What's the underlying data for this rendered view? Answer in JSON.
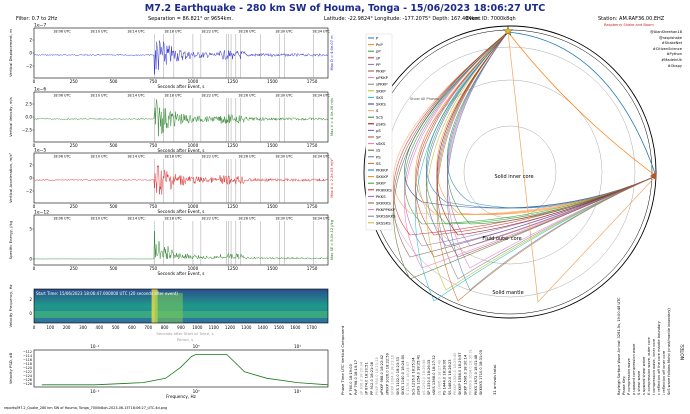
{
  "header": {
    "title": "M7.2 Earthquake - 280 km SW of Houma, Tonga - 15/06/2023 18:06:27 UTC",
    "filter": "Filter: 0.7 to 2Hz",
    "separation": "Separation = 86.821° or 9654km.",
    "location": "Latitude: -22.9824° Longitude: -177.2075° Depth: 167.404km.",
    "event_id": "Event ID: 7000k8qh",
    "station": "Station: AM.RAF36.00.EHZ",
    "station_sub": "Raspberry Shake and Boom",
    "credits": [
      "@AlanSheehan18",
      "@raspishake",
      "#ShakeNet",
      "#CitizenScience",
      "#Python",
      "#MadeInUk",
      "#Obspy"
    ]
  },
  "colors": {
    "title": "#1a2a8a",
    "displacement": "#1f1fcc",
    "velocity": "#1a7a1a",
    "acceleration": "#dd1a1a",
    "energy": "#1a7a1a",
    "accent": "#d02020"
  },
  "panels": [
    {
      "ylabel": "Vertical Displacement, m",
      "scale": "1e−7",
      "yticks": [
        "2",
        "0",
        "−2"
      ],
      "color": "displacement",
      "side": "Max D = 4.6e-07 m"
    },
    {
      "ylabel": "Vertical Velocity, m/s",
      "scale": "1e−6",
      "yticks": [
        "2.5",
        "0.0",
        "−2.5"
      ],
      "color": "velocity",
      "side": "Max V = 4.0e-06 m/s"
    },
    {
      "ylabel": "Vertical Acceleration, m/s²",
      "scale": "1e−5",
      "yticks": [
        "2",
        "0",
        "−2"
      ],
      "color": "acceleration",
      "side": "Max A = 2.2e-05 m/s²"
    },
    {
      "ylabel": "Specific Energy, J/kg",
      "scale": "1e−12",
      "yticks": [
        "5",
        "0"
      ],
      "color": "energy",
      "side": "Max SE = 8.0e-12 J/kg"
    }
  ],
  "time_labels": [
    "18:06 UTC",
    "18:10 UTC",
    "18:14 UTC",
    "18:18 UTC",
    "18:22 UTC",
    "18:26 UTC",
    "18:30 UTC",
    "18:34 UTC"
  ],
  "xaxis": {
    "ticks": [
      "0",
      "250",
      "500",
      "750",
      "1000",
      "1250",
      "1500",
      "1750"
    ],
    "label": "Seconds after Event, s"
  },
  "spectrogram": {
    "ylabel": "Velocity Frequency, Hz",
    "yticks": [
      "2",
      "0"
    ],
    "xticks": [
      "0",
      "100",
      "200",
      "300",
      "400",
      "500",
      "600",
      "700",
      "800",
      "900",
      "1000",
      "1100",
      "1200",
      "1300",
      "1400",
      "1500",
      "1600",
      "1700"
    ],
    "caption": "Start Time: 15/06/2023 18:06:47.000000 UTC (20 seconds after event)",
    "xlabel": "Seconds after Start of Trace, s",
    "period": "Period, s"
  },
  "psd": {
    "ylabel": "Velocity PSD, dB",
    "yticks": [
      "−112",
      "−114",
      "−116",
      "−118",
      "−120",
      "−122",
      "−124",
      "−126",
      "−128"
    ],
    "top_ticks": [
      "10¹",
      "10⁰",
      "10⁻¹"
    ],
    "bottom_ticks": [
      "10⁻¹",
      "10⁰",
      "10¹"
    ],
    "xlabel": "Frequency, Hz"
  },
  "globe": {
    "labels": [
      "Solid inner core",
      "Fluid outer core",
      "Solid mantle"
    ],
    "show_all": "Show All Phases"
  },
  "phases": [
    "P",
    "PcP",
    "pP",
    "sP",
    "PP",
    "PKKP",
    "pPKKP",
    "sPKKP",
    "SKKP",
    "SKS",
    "SKKS",
    "S",
    "ScS",
    "pSKS",
    "pS",
    "SP",
    "sSKS",
    "sS",
    "PS",
    "SS",
    "PKKKP",
    "SKKKP",
    "SKKP",
    "PKIKKKS",
    "PKKS",
    "SKKKKS",
    "PKKPPKKP",
    "SKKSSKKS",
    "SKSSKS"
  ],
  "phase_colors": [
    "#1f77b4",
    "#ff7f0e",
    "#2ca02c",
    "#d62728",
    "#9467bd",
    "#8c564b",
    "#e377c2",
    "#7f7f7f",
    "#bcbd22",
    "#17becf",
    "#1f3f8f",
    "#f4a460",
    "#228b22",
    "#8b0000",
    "#6a5acd",
    "#a0522d",
    "#ff69b4",
    "#556b2f",
    "#4682b4",
    "#d2691e"
  ],
  "table": {
    "header": "Phase  Time  UTC  Vertical Component",
    "footer": "31 arrivals total."
  },
  "notes": {
    "title": "NOTES:",
    "lines": [
      "Rayleigh Surface Wave Arrival: 3261.5s, 19:00:48 UTC",
      "Phase Key:",
      "P    compression wave",
      "p    upward compression wave",
      "S    shear wave",
      "s    upward shear wave",
      "K    compression wave, outer core",
      "I    compression wave, inner core",
      "c    reflection off the core mantle boundary",
      "i    reflection off inner core",
      "ScS  wave follows Moho (crust/mantle boundary)"
    ]
  },
  "footer": "reports/M7.2_Quake_280 km SW of Houma, Tonga_7000k8qh-2023-06-15T18:06:27_UTC.4d.png",
  "chart_data": [
    {
      "type": "line",
      "title": "Vertical Displacement",
      "ylabel": "Vertical Displacement, m",
      "xlabel": "Seconds after Event, s",
      "xlim": [
        0,
        1850
      ],
      "ylim": [
        -4.6e-07,
        4.6e-07
      ],
      "series": [
        {
          "name": "Displacement",
          "peak_x": 760,
          "peak_y": 4.6e-07
        }
      ]
    },
    {
      "type": "line",
      "title": "Vertical Velocity",
      "ylabel": "Vertical Velocity, m/s",
      "xlabel": "Seconds after Event, s",
      "xlim": [
        0,
        1850
      ],
      "ylim": [
        -4e-06,
        4e-06
      ],
      "series": [
        {
          "name": "Velocity",
          "peak_x": 760,
          "peak_y": 4e-06
        }
      ]
    },
    {
      "type": "line",
      "title": "Vertical Acceleration",
      "ylabel": "Vertical Acceleration, m/s²",
      "xlabel": "Seconds after Event, s",
      "xlim": [
        0,
        1850
      ],
      "ylim": [
        -2.2e-05,
        2.2e-05
      ],
      "series": [
        {
          "name": "Acceleration",
          "peak_x": 760,
          "peak_y": 2.2e-05
        }
      ]
    },
    {
      "type": "line",
      "title": "Specific Energy",
      "ylabel": "Specific Energy, J/kg",
      "xlabel": "Seconds after Event, s",
      "xlim": [
        0,
        1850
      ],
      "ylim": [
        0,
        8e-12
      ],
      "series": [
        {
          "name": "Specific Energy",
          "peak_x": 760,
          "peak_y": 8e-12
        }
      ]
    },
    {
      "type": "line",
      "title": "Velocity PSD",
      "xlabel": "Frequency, Hz",
      "ylabel": "Velocity PSD, dB",
      "xscale": "log",
      "x": [
        0.03,
        0.1,
        0.3,
        0.5,
        0.7,
        0.9,
        1.0,
        1.5,
        2.0,
        3.0,
        5.0,
        10.0,
        20.0
      ],
      "y": [
        -127,
        -127,
        -126,
        -124,
        -119,
        -114,
        -113,
        -113,
        -113,
        -121,
        -124,
        -126,
        -127
      ]
    }
  ]
}
